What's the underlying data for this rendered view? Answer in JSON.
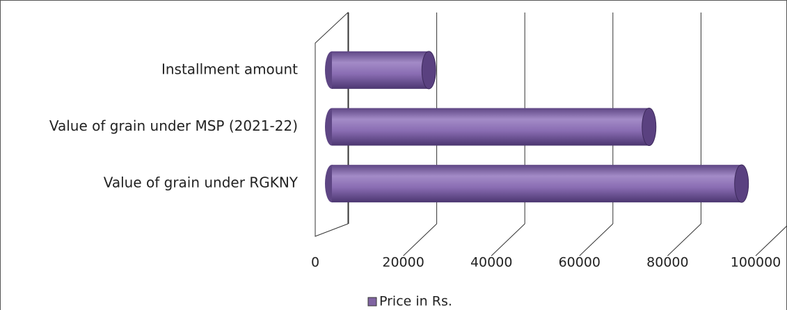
{
  "chart_data": {
    "type": "bar3d",
    "categories": [
      "Value of grain under RGKNY",
      "Value of grain under MSP (2021-22)",
      "Installment amount"
    ],
    "series": [
      {
        "name": "Price in Rs.",
        "color": "#8064a2",
        "values": [
          93000,
          72000,
          22000
        ]
      }
    ],
    "xlim": [
      0,
      100000
    ],
    "xticks": [
      0,
      20000,
      40000,
      60000,
      80000,
      100000
    ],
    "grid": true,
    "legend": "bottom"
  }
}
